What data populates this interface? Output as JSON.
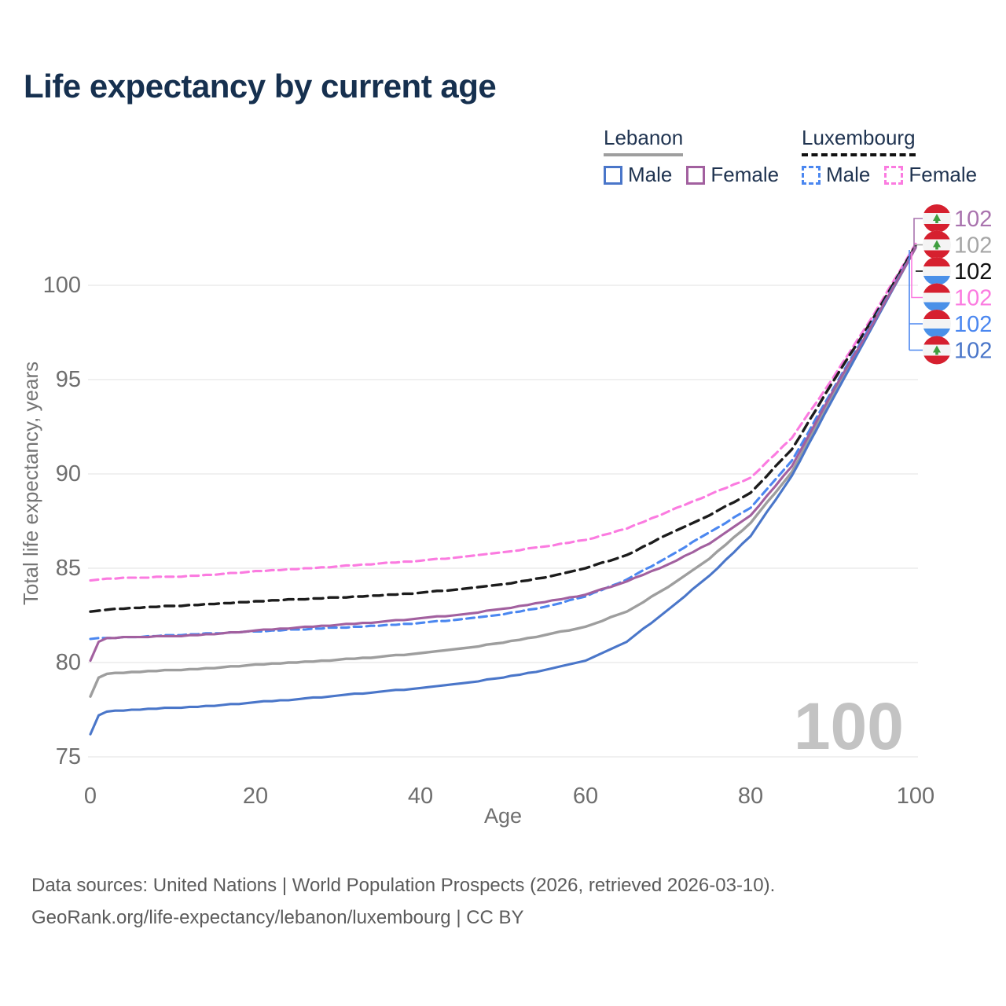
{
  "title": "Life expectancy by current age",
  "legend": {
    "groups": [
      {
        "name": "Lebanon",
        "underline_style": "solid",
        "underline_color": "#9e9e9e",
        "items": [
          {
            "label": "Male",
            "color": "#4a76c9",
            "dash": false
          },
          {
            "label": "Female",
            "color": "#a2609f",
            "dash": false
          }
        ]
      },
      {
        "name": "Luxembourg",
        "underline_style": "dashed",
        "underline_color": "#111111",
        "items": [
          {
            "label": "Male",
            "color": "#4b87f0",
            "dash": true
          },
          {
            "label": "Female",
            "color": "#fb7be0",
            "dash": true
          }
        ]
      }
    ]
  },
  "chart_data": {
    "type": "line",
    "title": "Life expectancy by current age",
    "xlabel": "Age",
    "ylabel": "Total life expectancy, years",
    "xlim": [
      0,
      100
    ],
    "ylim": [
      75,
      102.5
    ],
    "xticks": [
      "0",
      "20",
      "40",
      "60",
      "80",
      "100"
    ],
    "xtick_values": [
      0,
      20,
      40,
      60,
      80,
      100
    ],
    "yticks": [
      "75",
      "80",
      "85",
      "90",
      "95",
      "100"
    ],
    "ytick_values": [
      75,
      80,
      85,
      90,
      95,
      100
    ],
    "grid": "horizontal",
    "watermark_age": "100",
    "x": [
      0,
      1,
      2,
      5,
      10,
      15,
      20,
      25,
      30,
      35,
      40,
      45,
      50,
      55,
      60,
      65,
      70,
      75,
      80,
      85,
      90,
      95,
      100
    ],
    "series": [
      {
        "name": "Luxembourg Female",
        "country": "luxembourg",
        "sex": "female",
        "color": "#fb7be0",
        "dash": true,
        "values": [
          84.35,
          84.4,
          84.45,
          84.5,
          84.55,
          84.65,
          84.85,
          84.95,
          85.1,
          85.25,
          85.4,
          85.6,
          85.85,
          86.15,
          86.5,
          87.1,
          88.0,
          88.9,
          89.8,
          91.9,
          95.1,
          98.5,
          102.2
        ]
      },
      {
        "name": "Luxembourg Both sexes",
        "country": "luxembourg",
        "sex": "both",
        "color": "#1c1c1c",
        "dash": true,
        "values": [
          82.7,
          82.75,
          82.8,
          82.9,
          83.0,
          83.1,
          83.25,
          83.35,
          83.45,
          83.55,
          83.7,
          83.9,
          84.15,
          84.5,
          85.0,
          85.7,
          86.8,
          87.8,
          89.0,
          91.3,
          94.9,
          98.35,
          102.1
        ]
      },
      {
        "name": "Lebanon Both sexes",
        "country": "lebanon",
        "sex": "both",
        "color": "#9e9e9e",
        "dash": false,
        "values": [
          78.2,
          79.2,
          79.4,
          79.5,
          79.6,
          79.7,
          79.9,
          80.0,
          80.15,
          80.3,
          80.5,
          80.75,
          81.05,
          81.45,
          81.9,
          82.7,
          84.0,
          85.5,
          87.4,
          90.1,
          94.2,
          98.05,
          102.0
        ]
      },
      {
        "name": "Lebanon Male",
        "country": "lebanon",
        "sex": "male",
        "color": "#4a76c9",
        "dash": false,
        "values": [
          76.2,
          77.2,
          77.4,
          77.5,
          77.6,
          77.7,
          77.9,
          78.05,
          78.25,
          78.45,
          78.65,
          78.9,
          79.2,
          79.6,
          80.1,
          81.1,
          82.8,
          84.6,
          86.7,
          89.9,
          94.0,
          98.0,
          102.0
        ]
      },
      {
        "name": "Luxembourg Male",
        "country": "luxembourg",
        "sex": "male",
        "color": "#4b87f0",
        "dash": true,
        "values": [
          81.25,
          81.3,
          81.3,
          81.35,
          81.45,
          81.55,
          81.65,
          81.75,
          81.85,
          81.95,
          82.1,
          82.3,
          82.55,
          82.95,
          83.5,
          84.4,
          85.6,
          86.9,
          88.2,
          90.7,
          94.5,
          98.2,
          102.0
        ]
      },
      {
        "name": "Lebanon Female",
        "country": "lebanon",
        "sex": "female",
        "color": "#a2609f",
        "dash": false,
        "values": [
          80.1,
          81.1,
          81.3,
          81.35,
          81.4,
          81.5,
          81.7,
          81.85,
          82.0,
          82.15,
          82.35,
          82.55,
          82.85,
          83.2,
          83.6,
          84.3,
          85.2,
          86.3,
          87.8,
          90.4,
          94.4,
          98.1,
          102.0
        ]
      }
    ],
    "end_labels": [
      {
        "value": "102",
        "flag": "lebanon",
        "color": "#a973ae",
        "series": "Lebanon Female"
      },
      {
        "value": "102",
        "flag": "lebanon",
        "color": "#a6a6a6",
        "series": "Lebanon Both sexes"
      },
      {
        "value": "102",
        "flag": "luxembourg",
        "color": "#111111",
        "series": "Luxembourg Both sexes"
      },
      {
        "value": "102",
        "flag": "luxembourg",
        "color": "#fb7be0",
        "series": "Luxembourg Female"
      },
      {
        "value": "102",
        "flag": "luxembourg",
        "color": "#4b87f0",
        "series": "Luxembourg Male"
      },
      {
        "value": "102",
        "flag": "lebanon",
        "color": "#4a76c9",
        "series": "Lebanon Male"
      }
    ],
    "flag_colors": {
      "lebanon_red": "#d6202f",
      "lebanon_cedar_green": "#3f9e3f",
      "luxembourg_red": "#d6202f",
      "luxembourg_blue": "#4a90e8",
      "flag_white": "#f4f4f4"
    }
  },
  "footer": {
    "line1": "Data sources: United Nations | World Population Prospects (2026, retrieved 2026-03-10).",
    "line2": "GeoRank.org/life-expectancy/lebanon/luxembourg | CC BY"
  }
}
